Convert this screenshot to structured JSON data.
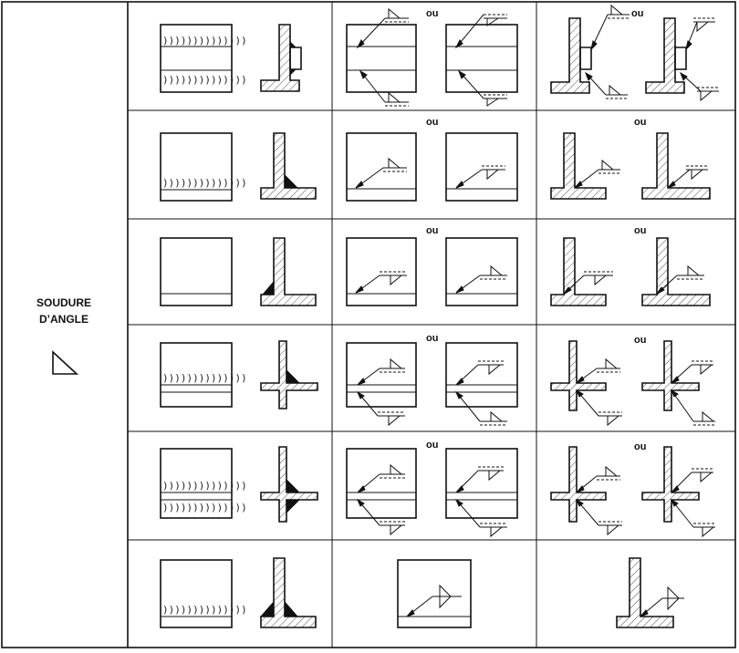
{
  "label": {
    "line1": "SOUDURE",
    "line2": "D’ANGLE"
  },
  "alternative_word": "ou",
  "bead_texture": "))))))))))))))",
  "icons": [
    "fillet-weld-symbol-icon"
  ]
}
